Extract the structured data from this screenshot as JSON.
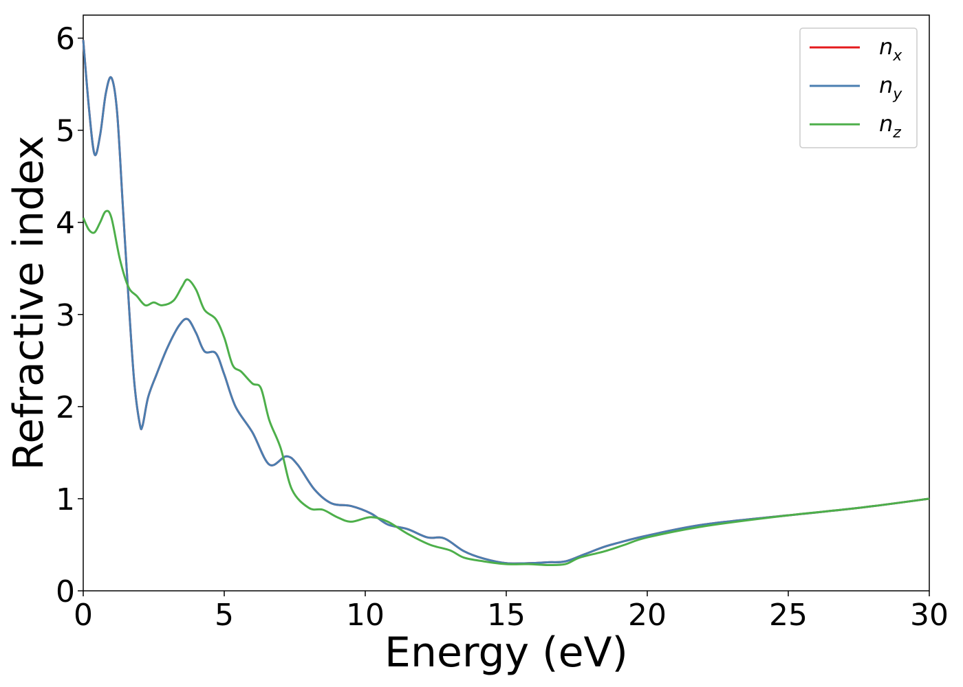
{
  "chart_data": {
    "type": "line",
    "xlabel": "Energy (eV)",
    "ylabel": "Refractive index",
    "xlim": [
      0,
      30
    ],
    "ylim": [
      0,
      6.25
    ],
    "xticks": [
      "0",
      "5",
      "10",
      "15",
      "20",
      "25",
      "30"
    ],
    "yticks": [
      "0",
      "1",
      "2",
      "3",
      "4",
      "5",
      "6"
    ],
    "grid": false,
    "legend_position": "top-right",
    "series": [
      {
        "name": "n_x",
        "label_base": "n",
        "label_sub": "x",
        "color": "#e41a1c",
        "x": [
          0,
          0.2,
          0.4,
          0.6,
          0.8,
          1.0,
          1.2,
          1.4,
          1.6,
          1.8,
          2.0,
          2.1,
          2.3,
          2.6,
          3.0,
          3.4,
          3.7,
          4.0,
          4.3,
          4.7,
          5.0,
          5.4,
          6.0,
          6.6,
          7.2,
          7.6,
          8.2,
          8.8,
          9.5,
          10.2,
          10.8,
          11.5,
          12.2,
          12.8,
          13.5,
          14.2,
          15.0,
          15.8,
          16.5,
          17.1,
          17.8,
          18.5,
          19.2,
          20.0,
          22.0,
          25.0,
          27.5,
          30.0
        ],
        "y": [
          5.98,
          5.25,
          4.74,
          4.95,
          5.4,
          5.57,
          5.2,
          4.2,
          3.2,
          2.3,
          1.82,
          1.79,
          2.1,
          2.35,
          2.65,
          2.88,
          2.95,
          2.8,
          2.6,
          2.58,
          2.35,
          2.0,
          1.72,
          1.37,
          1.46,
          1.37,
          1.1,
          0.95,
          0.92,
          0.84,
          0.72,
          0.67,
          0.58,
          0.57,
          0.43,
          0.35,
          0.3,
          0.3,
          0.31,
          0.32,
          0.4,
          0.48,
          0.54,
          0.6,
          0.72,
          0.82,
          0.9,
          1.0
        ]
      },
      {
        "name": "n_y",
        "label_base": "n",
        "label_sub": "y",
        "color": "#4a7eb0",
        "x": [
          0,
          0.2,
          0.4,
          0.6,
          0.8,
          1.0,
          1.2,
          1.4,
          1.6,
          1.8,
          2.0,
          2.1,
          2.3,
          2.6,
          3.0,
          3.4,
          3.7,
          4.0,
          4.3,
          4.7,
          5.0,
          5.4,
          6.0,
          6.6,
          7.2,
          7.6,
          8.2,
          8.8,
          9.5,
          10.2,
          10.8,
          11.5,
          12.2,
          12.8,
          13.5,
          14.2,
          15.0,
          15.8,
          16.5,
          17.1,
          17.8,
          18.5,
          19.2,
          20.0,
          22.0,
          25.0,
          27.5,
          30.0
        ],
        "y": [
          5.98,
          5.25,
          4.74,
          4.95,
          5.4,
          5.57,
          5.2,
          4.2,
          3.2,
          2.3,
          1.82,
          1.79,
          2.1,
          2.35,
          2.65,
          2.88,
          2.95,
          2.8,
          2.6,
          2.58,
          2.35,
          2.0,
          1.72,
          1.37,
          1.46,
          1.37,
          1.1,
          0.95,
          0.92,
          0.84,
          0.72,
          0.67,
          0.58,
          0.57,
          0.43,
          0.35,
          0.3,
          0.3,
          0.31,
          0.32,
          0.4,
          0.48,
          0.54,
          0.6,
          0.72,
          0.82,
          0.9,
          1.0
        ]
      },
      {
        "name": "n_z",
        "label_base": "n",
        "label_sub": "z",
        "color": "#4daf4a",
        "x": [
          0,
          0.2,
          0.4,
          0.6,
          0.8,
          1.0,
          1.3,
          1.6,
          1.9,
          2.2,
          2.5,
          2.8,
          3.2,
          3.5,
          3.7,
          4.0,
          4.3,
          4.7,
          5.0,
          5.3,
          5.6,
          6.0,
          6.3,
          6.6,
          7.0,
          7.4,
          8.0,
          8.5,
          9.0,
          9.5,
          10.2,
          10.8,
          11.5,
          12.3,
          13.0,
          13.5,
          14.2,
          15.0,
          15.8,
          16.5,
          17.1,
          17.6,
          18.5,
          19.2,
          20.0,
          22.0,
          25.0,
          27.5,
          30.0
        ],
        "y": [
          4.05,
          3.92,
          3.89,
          4.0,
          4.12,
          4.05,
          3.6,
          3.3,
          3.2,
          3.1,
          3.13,
          3.1,
          3.15,
          3.3,
          3.38,
          3.27,
          3.05,
          2.95,
          2.75,
          2.45,
          2.38,
          2.25,
          2.2,
          1.85,
          1.55,
          1.1,
          0.9,
          0.88,
          0.8,
          0.75,
          0.8,
          0.75,
          0.62,
          0.5,
          0.44,
          0.36,
          0.32,
          0.29,
          0.29,
          0.28,
          0.29,
          0.36,
          0.43,
          0.5,
          0.58,
          0.7,
          0.82,
          0.9,
          1.0
        ]
      }
    ]
  }
}
